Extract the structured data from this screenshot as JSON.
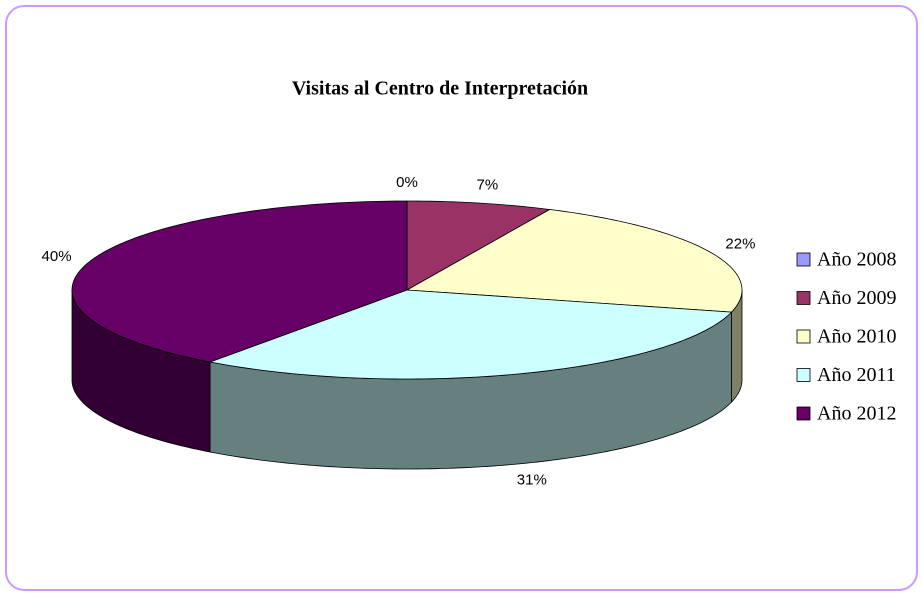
{
  "chart_data": {
    "type": "pie",
    "title": "Visitas al Centro de Interpretación",
    "categories": [
      "Año 2008",
      "Año 2009",
      "Año 2010",
      "Año 2011",
      "Año 2012"
    ],
    "values": [
      0,
      7,
      22,
      31,
      40
    ],
    "value_labels": [
      "0%",
      "7%",
      "22%",
      "31%",
      "40%"
    ],
    "colors": [
      "#9999ff",
      "#993366",
      "#ffffcc",
      "#ccffff",
      "#660066"
    ],
    "legend": "right"
  }
}
